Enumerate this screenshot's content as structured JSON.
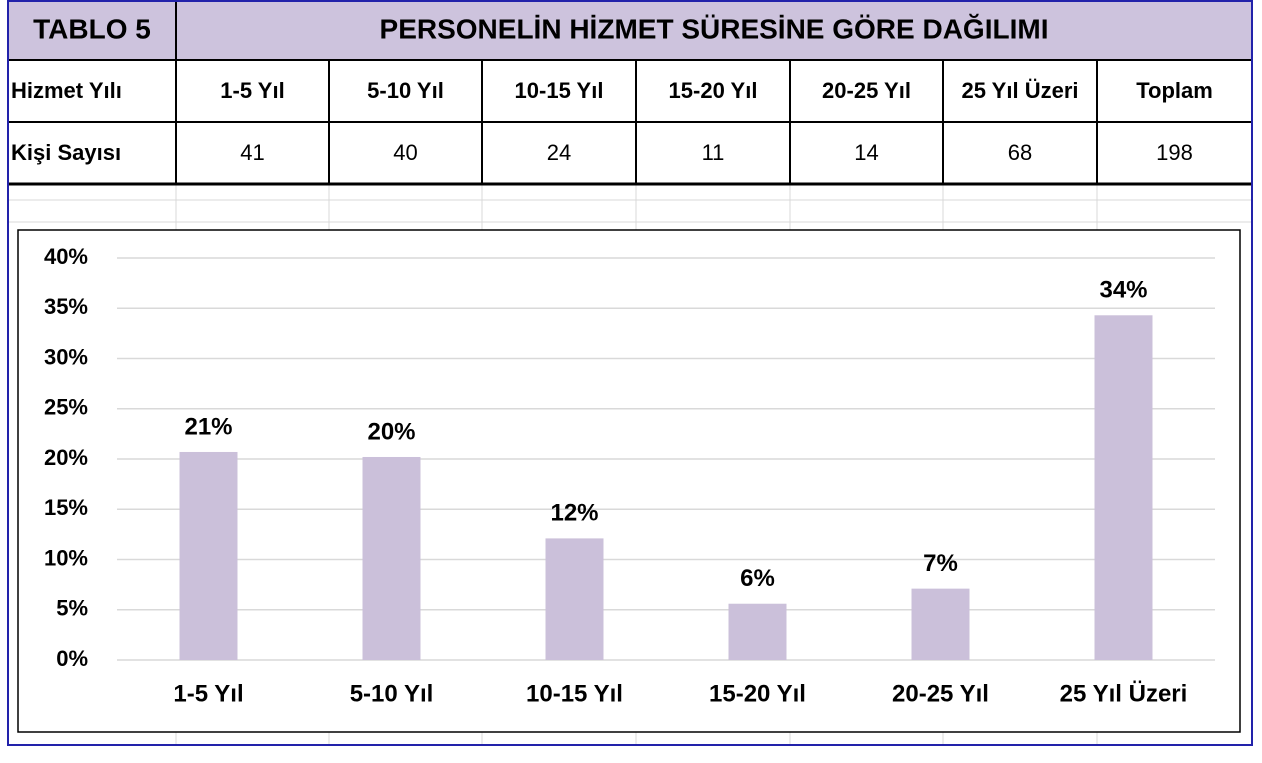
{
  "table": {
    "tag": "TABLO 5",
    "title": "PERSONELİN HİZMET SÜRESİNE GÖRE DAĞILIMI",
    "header": [
      "Hizmet Yılı",
      "1-5 Yıl",
      "5-10 Yıl",
      "10-15 Yıl",
      "15-20 Yıl",
      "20-25 Yıl",
      "25 Yıl Üzeri",
      "Toplam"
    ],
    "row": [
      "Kişi Sayısı",
      "41",
      "40",
      "24",
      "11",
      "14",
      "68",
      "198"
    ]
  },
  "chart_data": {
    "type": "bar",
    "categories": [
      "1-5 Yıl",
      "5-10 Yıl",
      "10-15 Yıl",
      "15-20 Yıl",
      "20-25 Yıl",
      "25 Yıl Üzeri"
    ],
    "values": [
      20.7,
      20.2,
      12.1,
      5.6,
      7.1,
      34.3
    ],
    "value_labels": [
      "21%",
      "20%",
      "12%",
      "6%",
      "7%",
      "34%"
    ],
    "color": "#cbc0da",
    "ylim": [
      0,
      40
    ],
    "yticks": [
      {
        "value": 0,
        "label": "0%"
      },
      {
        "value": 5,
        "label": "5%"
      },
      {
        "value": 10,
        "label": "10%"
      },
      {
        "value": 15,
        "label": "15%"
      },
      {
        "value": 20,
        "label": "20%"
      },
      {
        "value": 25,
        "label": "25%"
      },
      {
        "value": 30,
        "label": "30%"
      },
      {
        "value": 35,
        "label": "35%"
      },
      {
        "value": 40,
        "label": "40%"
      }
    ],
    "grid": true
  }
}
